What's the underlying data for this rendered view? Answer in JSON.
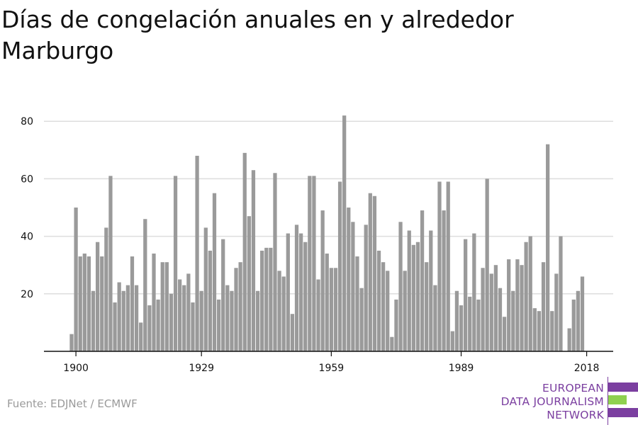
{
  "title": "Días de congelación anuales en y alrededor Marburgo",
  "source": "Fuente: EDJNet / ECMWF",
  "logo": {
    "line1": "EUROPEAN",
    "line2": "DATA JOURNALISM",
    "line3": "NETWORK",
    "colors": {
      "purple": "#7b3fa0",
      "green": "#8fd14f"
    }
  },
  "colors": {
    "bar": "#9a9a9a",
    "grid": "#dddddd",
    "axis": "#111111",
    "text": "#111111"
  },
  "chart_data": {
    "type": "bar",
    "title": "Días de congelación anuales en y alrededor Marburgo",
    "xlabel": "",
    "ylabel": "",
    "x_ticks": [
      1900,
      1929,
      1959,
      1989,
      2018
    ],
    "y_ticks": [
      20,
      40,
      60,
      80
    ],
    "ylim": [
      0,
      85
    ],
    "grid": true,
    "legend": "none",
    "categories": [
      1899,
      1900,
      1901,
      1902,
      1903,
      1904,
      1905,
      1906,
      1907,
      1908,
      1909,
      1910,
      1911,
      1912,
      1913,
      1914,
      1915,
      1916,
      1917,
      1918,
      1919,
      1920,
      1921,
      1922,
      1923,
      1924,
      1925,
      1926,
      1927,
      1928,
      1929,
      1930,
      1931,
      1932,
      1933,
      1934,
      1935,
      1936,
      1937,
      1938,
      1939,
      1940,
      1941,
      1942,
      1943,
      1944,
      1945,
      1946,
      1947,
      1948,
      1949,
      1950,
      1951,
      1952,
      1953,
      1954,
      1955,
      1956,
      1957,
      1958,
      1959,
      1960,
      1961,
      1962,
      1963,
      1964,
      1965,
      1966,
      1967,
      1968,
      1969,
      1970,
      1971,
      1972,
      1973,
      1974,
      1975,
      1976,
      1977,
      1978,
      1979,
      1980,
      1981,
      1982,
      1983,
      1984,
      1985,
      1986,
      1987,
      1988,
      1989,
      1990,
      1991,
      1992,
      1993,
      1994,
      1995,
      1996,
      1997,
      1998,
      1999,
      2000,
      2001,
      2002,
      2003,
      2004,
      2005,
      2006,
      2007,
      2008,
      2009,
      2010,
      2011,
      2012,
      2013,
      2014,
      2015,
      2016,
      2017,
      2018
    ],
    "values": [
      6,
      50,
      33,
      34,
      33,
      21,
      38,
      33,
      43,
      61,
      17,
      24,
      21,
      23,
      33,
      23,
      10,
      46,
      16,
      34,
      18,
      31,
      31,
      20,
      61,
      25,
      23,
      27,
      17,
      68,
      21,
      43,
      35,
      55,
      18,
      39,
      23,
      21,
      29,
      31,
      69,
      47,
      63,
      21,
      35,
      36,
      36,
      62,
      28,
      26,
      41,
      13,
      44,
      41,
      38,
      61,
      61,
      25,
      49,
      34,
      29,
      29,
      59,
      82,
      50,
      45,
      33,
      22,
      44,
      55,
      54,
      35,
      31,
      28,
      5,
      18,
      45,
      28,
      42,
      37,
      38,
      49,
      31,
      42,
      23,
      59,
      49,
      59,
      7,
      21,
      16,
      39,
      19,
      41,
      18,
      29,
      60,
      27,
      30,
      22,
      12,
      32,
      21,
      32,
      30,
      38,
      40,
      15,
      14,
      31,
      72,
      14,
      27,
      40,
      0,
      8,
      18,
      21,
      26,
      0
    ]
  }
}
